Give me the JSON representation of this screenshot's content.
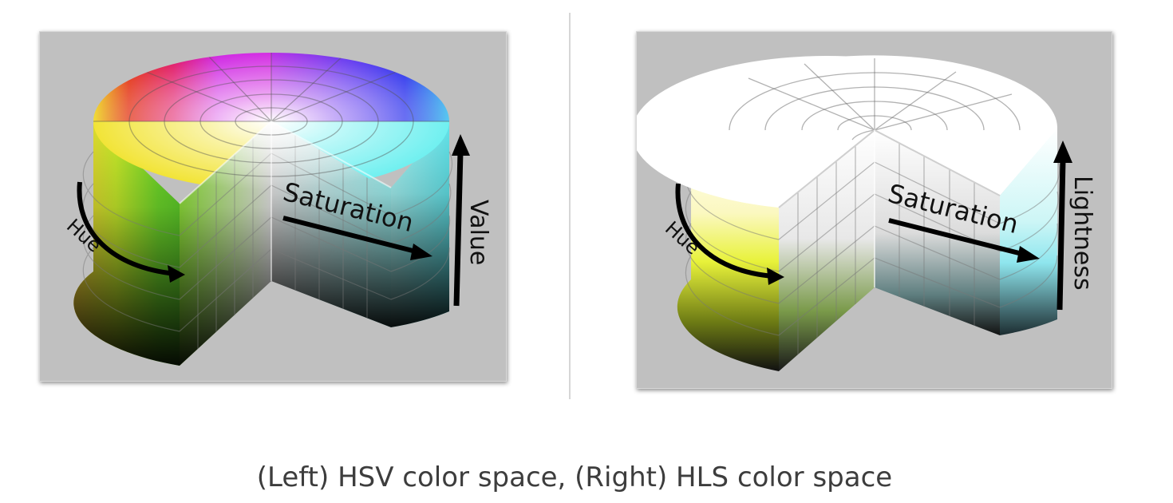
{
  "figure": {
    "left": {
      "name": "HSV",
      "labels": {
        "hue": "Hue",
        "saturation": "Saturation",
        "vertical": "Value"
      }
    },
    "right": {
      "name": "HLS",
      "labels": {
        "hue": "Hue",
        "saturation": "Saturation",
        "vertical": "Lightness"
      }
    },
    "caption": "(Left) HSV color space, (Right) HLS color space"
  },
  "colors": {
    "panel_background": "#c0c0c0",
    "red": "#e0211f",
    "yellow": "#f6f23a",
    "green": "#79e528",
    "cyan": "#7ff3f3",
    "blue": "#3b3cf0",
    "magenta": "#d22ee0",
    "axis_arrow": "#000000"
  }
}
